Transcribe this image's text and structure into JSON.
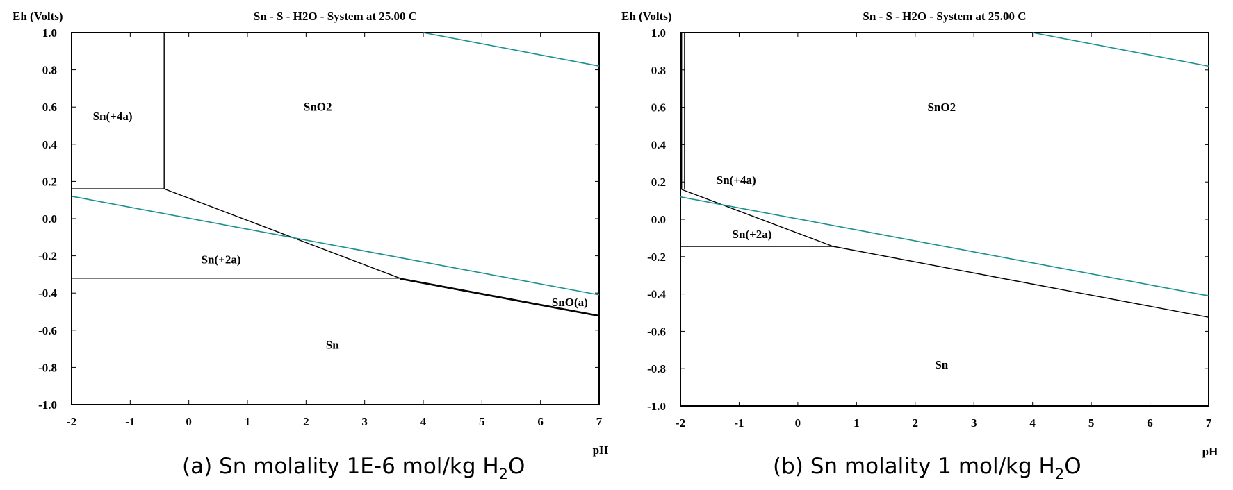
{
  "figure": {
    "panel_a_caption": "(a)  Sn molality 1E-6 mol/kg H",
    "panel_b_caption": "(b)  Sn molality 1 mol/kg H",
    "caption_subscript": "2",
    "caption_suffix": "O"
  },
  "colors": {
    "boundary": "#000000",
    "water_line": "#1a9090",
    "frame": "#000000"
  },
  "chart_data": [
    {
      "type": "line",
      "title": "Sn - S - H2O - System at 25.00 C",
      "xlabel": "pH",
      "ylabel": "Eh (Volts)",
      "xlim": [
        -2,
        7
      ],
      "ylim": [
        -1.0,
        1.0
      ],
      "xticks": [
        -2,
        -1,
        0,
        1,
        2,
        3,
        4,
        5,
        6,
        7
      ],
      "xtick_labels": [
        "-2",
        "-1",
        "0",
        "1",
        "2",
        "3",
        "4",
        "5",
        "6",
        "7"
      ],
      "yticks": [
        1.0,
        0.8,
        0.6,
        0.4,
        0.2,
        0.0,
        -0.2,
        -0.4,
        -0.6,
        -0.8,
        -1.0
      ],
      "ytick_labels": [
        "1.0",
        "0.8",
        "0.6",
        "0.4",
        "0.2",
        "0.0",
        "-0.2",
        "-0.4",
        "-0.6",
        "-0.8",
        "-1.0"
      ],
      "series": [
        {
          "name": "Sn(+4a)/Sn(+2a)",
          "kind": "boundary",
          "x": [
            -2,
            -0.42
          ],
          "y": [
            0.16,
            0.16
          ]
        },
        {
          "name": "Sn(+4a)/SnO2",
          "kind": "boundary",
          "x": [
            -0.42,
            -0.42
          ],
          "y": [
            0.16,
            1.0
          ]
        },
        {
          "name": "Sn(+2a)/SnO2",
          "kind": "boundary",
          "x": [
            -0.42,
            3.6
          ],
          "y": [
            0.16,
            -0.32
          ]
        },
        {
          "name": "Sn(+2a)/Sn",
          "kind": "boundary",
          "x": [
            -2,
            3.6
          ],
          "y": [
            -0.32,
            -0.32
          ]
        },
        {
          "name": "SnO2/SnO(a)",
          "kind": "boundary",
          "x": [
            3.6,
            7
          ],
          "y": [
            -0.32,
            -0.52
          ]
        },
        {
          "name": "SnO(a)/Sn",
          "kind": "boundary",
          "x": [
            3.6,
            7
          ],
          "y": [
            -0.325,
            -0.525
          ]
        },
        {
          "name": "O2/H2O",
          "kind": "water",
          "x": [
            4.0,
            7
          ],
          "y": [
            1.0,
            0.82
          ]
        },
        {
          "name": "H2O/H2",
          "kind": "water",
          "x": [
            -2,
            7
          ],
          "y": [
            0.12,
            -0.41
          ]
        }
      ],
      "regions": [
        {
          "label": "Sn(+4a)",
          "x": -1.3,
          "y": 0.53
        },
        {
          "label": "SnO2",
          "x": 2.2,
          "y": 0.58
        },
        {
          "label": "Sn(+2a)",
          "x": 0.55,
          "y": -0.24
        },
        {
          "label": "SnO(a)",
          "x": 6.5,
          "y": -0.47
        },
        {
          "label": "Sn",
          "x": 2.45,
          "y": -0.7
        }
      ]
    },
    {
      "type": "line",
      "title": "Sn - S - H2O - System at 25.00 C",
      "xlabel": "pH",
      "ylabel": "Eh (Volts)",
      "xlim": [
        -2,
        7
      ],
      "ylim": [
        -1.0,
        1.0
      ],
      "xticks": [
        -2,
        -1,
        0,
        1,
        2,
        3,
        4,
        5,
        6,
        7
      ],
      "xtick_labels": [
        "-2",
        "-1",
        "0",
        "1",
        "2",
        "3",
        "4",
        "5",
        "6",
        "7"
      ],
      "yticks": [
        1.0,
        0.8,
        0.6,
        0.4,
        0.2,
        0.0,
        -0.2,
        -0.4,
        -0.6,
        -0.8,
        -1.0
      ],
      "ytick_labels": [
        "1.0",
        "0.8",
        "0.6",
        "0.4",
        "0.2",
        "0.0",
        "-0.2",
        "-0.4",
        "-0.6",
        "-0.8",
        "-1.0"
      ],
      "series": [
        {
          "name": "Sn(+4a)/SnO2 vertical A",
          "kind": "boundary",
          "x": [
            -1.93,
            -1.93
          ],
          "y": [
            0.16,
            1.0
          ]
        },
        {
          "name": "Sn(+4a)/SnO2 vertical B",
          "kind": "boundary",
          "x": [
            -1.98,
            -1.98
          ],
          "y": [
            0.16,
            1.0
          ]
        },
        {
          "name": "Sn(+4a)/SnO2",
          "kind": "boundary",
          "x": [
            -1.98,
            0.6
          ],
          "y": [
            0.16,
            -0.145
          ]
        },
        {
          "name": "Sn(+4a)/Sn(+2a)",
          "kind": "boundary",
          "x": [
            -2,
            0.6
          ],
          "y": [
            -0.145,
            -0.145
          ]
        },
        {
          "name": "SnO2/Sn",
          "kind": "boundary",
          "x": [
            0.6,
            7
          ],
          "y": [
            -0.145,
            -0.525
          ]
        },
        {
          "name": "O2/H2O",
          "kind": "water",
          "x": [
            4.0,
            7
          ],
          "y": [
            1.0,
            0.82
          ]
        },
        {
          "name": "H2O/H2",
          "kind": "water",
          "x": [
            -2,
            7
          ],
          "y": [
            0.12,
            -0.41
          ]
        }
      ],
      "regions": [
        {
          "label": "SnO2",
          "x": 2.45,
          "y": 0.58
        },
        {
          "label": "Sn(+4a)",
          "x": -1.05,
          "y": 0.19
        },
        {
          "label": "Sn(+2a)",
          "x": -0.78,
          "y": -0.1
        },
        {
          "label": "Sn",
          "x": 2.45,
          "y": -0.8
        }
      ]
    }
  ]
}
